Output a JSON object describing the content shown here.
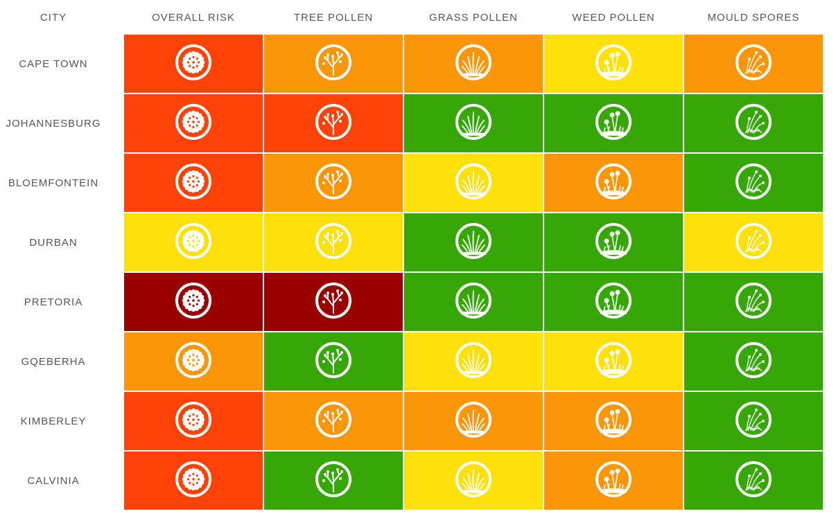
{
  "headers": {
    "city": "CITY",
    "columns": [
      "OVERALL RISK",
      "TREE POLLEN",
      "GRASS POLLEN",
      "WEED POLLEN",
      "MOULD SPORES"
    ]
  },
  "colors": {
    "very_high": "#990000",
    "high": "#ff4207",
    "moderate": "#fb9609",
    "low": "#fee00a",
    "very_low": "#36a707"
  },
  "icons": [
    "pollen-grain-icon",
    "tree-icon",
    "grass-icon",
    "weed-flower-icon",
    "mould-spores-icon"
  ],
  "rows": [
    {
      "city": "CAPE TOWN",
      "levels": [
        "high",
        "moderate",
        "moderate",
        "low",
        "moderate"
      ]
    },
    {
      "city": "JOHANNESBURG",
      "levels": [
        "high",
        "high",
        "very_low",
        "very_low",
        "very_low"
      ]
    },
    {
      "city": "BLOEMFONTEIN",
      "levels": [
        "high",
        "moderate",
        "low",
        "moderate",
        "very_low"
      ]
    },
    {
      "city": "DURBAN",
      "levels": [
        "low",
        "low",
        "very_low",
        "very_low",
        "low"
      ]
    },
    {
      "city": "PRETORIA",
      "levels": [
        "very_high",
        "very_high",
        "very_low",
        "very_low",
        "very_low"
      ]
    },
    {
      "city": "GQEBERHA",
      "levels": [
        "moderate",
        "very_low",
        "low",
        "low",
        "very_low"
      ]
    },
    {
      "city": "KIMBERLEY",
      "levels": [
        "high",
        "moderate",
        "moderate",
        "moderate",
        "very_low"
      ]
    },
    {
      "city": "CALVINIA",
      "levels": [
        "high",
        "very_low",
        "low",
        "moderate",
        "very_low"
      ]
    }
  ],
  "chart_data": {
    "type": "heatmap",
    "title": "",
    "x_categories": [
      "OVERALL RISK",
      "TREE POLLEN",
      "GRASS POLLEN",
      "WEED POLLEN",
      "MOULD SPORES"
    ],
    "y_categories": [
      "CAPE TOWN",
      "JOHANNESBURG",
      "BLOEMFONTEIN",
      "DURBAN",
      "PRETORIA",
      "GQEBERHA",
      "KIMBERLEY",
      "CALVINIA"
    ],
    "scale": [
      "very_low",
      "low",
      "moderate",
      "high",
      "very_high"
    ],
    "scale_colors": [
      "#36a707",
      "#fee00a",
      "#fb9609",
      "#ff4207",
      "#990000"
    ],
    "values": [
      [
        "high",
        "moderate",
        "moderate",
        "low",
        "moderate"
      ],
      [
        "high",
        "high",
        "very_low",
        "very_low",
        "very_low"
      ],
      [
        "high",
        "moderate",
        "low",
        "moderate",
        "very_low"
      ],
      [
        "low",
        "low",
        "very_low",
        "very_low",
        "low"
      ],
      [
        "very_high",
        "very_high",
        "very_low",
        "very_low",
        "very_low"
      ],
      [
        "moderate",
        "very_low",
        "low",
        "low",
        "very_low"
      ],
      [
        "high",
        "moderate",
        "moderate",
        "moderate",
        "very_low"
      ],
      [
        "high",
        "very_low",
        "low",
        "moderate",
        "very_low"
      ]
    ],
    "legend": "none",
    "grid": false
  }
}
